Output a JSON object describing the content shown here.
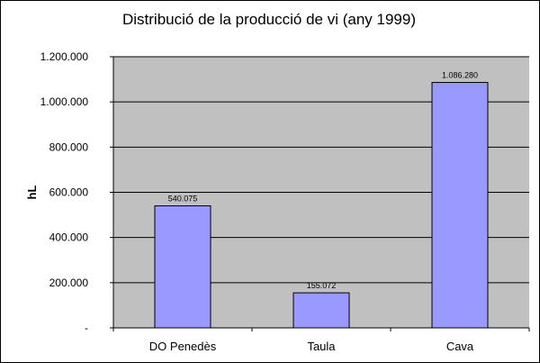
{
  "chart_data": {
    "type": "bar",
    "title": "Distribució de la producció de vi (any 1999)",
    "xlabel": "",
    "ylabel": "hL",
    "categories": [
      "DO Penedès",
      "Taula",
      "Cava"
    ],
    "values": [
      540075,
      155072,
      1086280
    ],
    "data_labels": [
      "540.075",
      "155.072",
      "1.086.280"
    ],
    "ylim": [
      0,
      1200000
    ],
    "yticks": [
      0,
      200000,
      400000,
      600000,
      800000,
      1000000,
      1200000
    ],
    "ytick_labels": [
      "-",
      "200.000",
      "400.000",
      "600.000",
      "800.000",
      "1.000.000",
      "1.200.000"
    ],
    "grid": true,
    "legend": "none",
    "colors": {
      "bar": "#9999ff",
      "plot_bg": "#c0c0c0",
      "gridline": "#000000"
    }
  }
}
